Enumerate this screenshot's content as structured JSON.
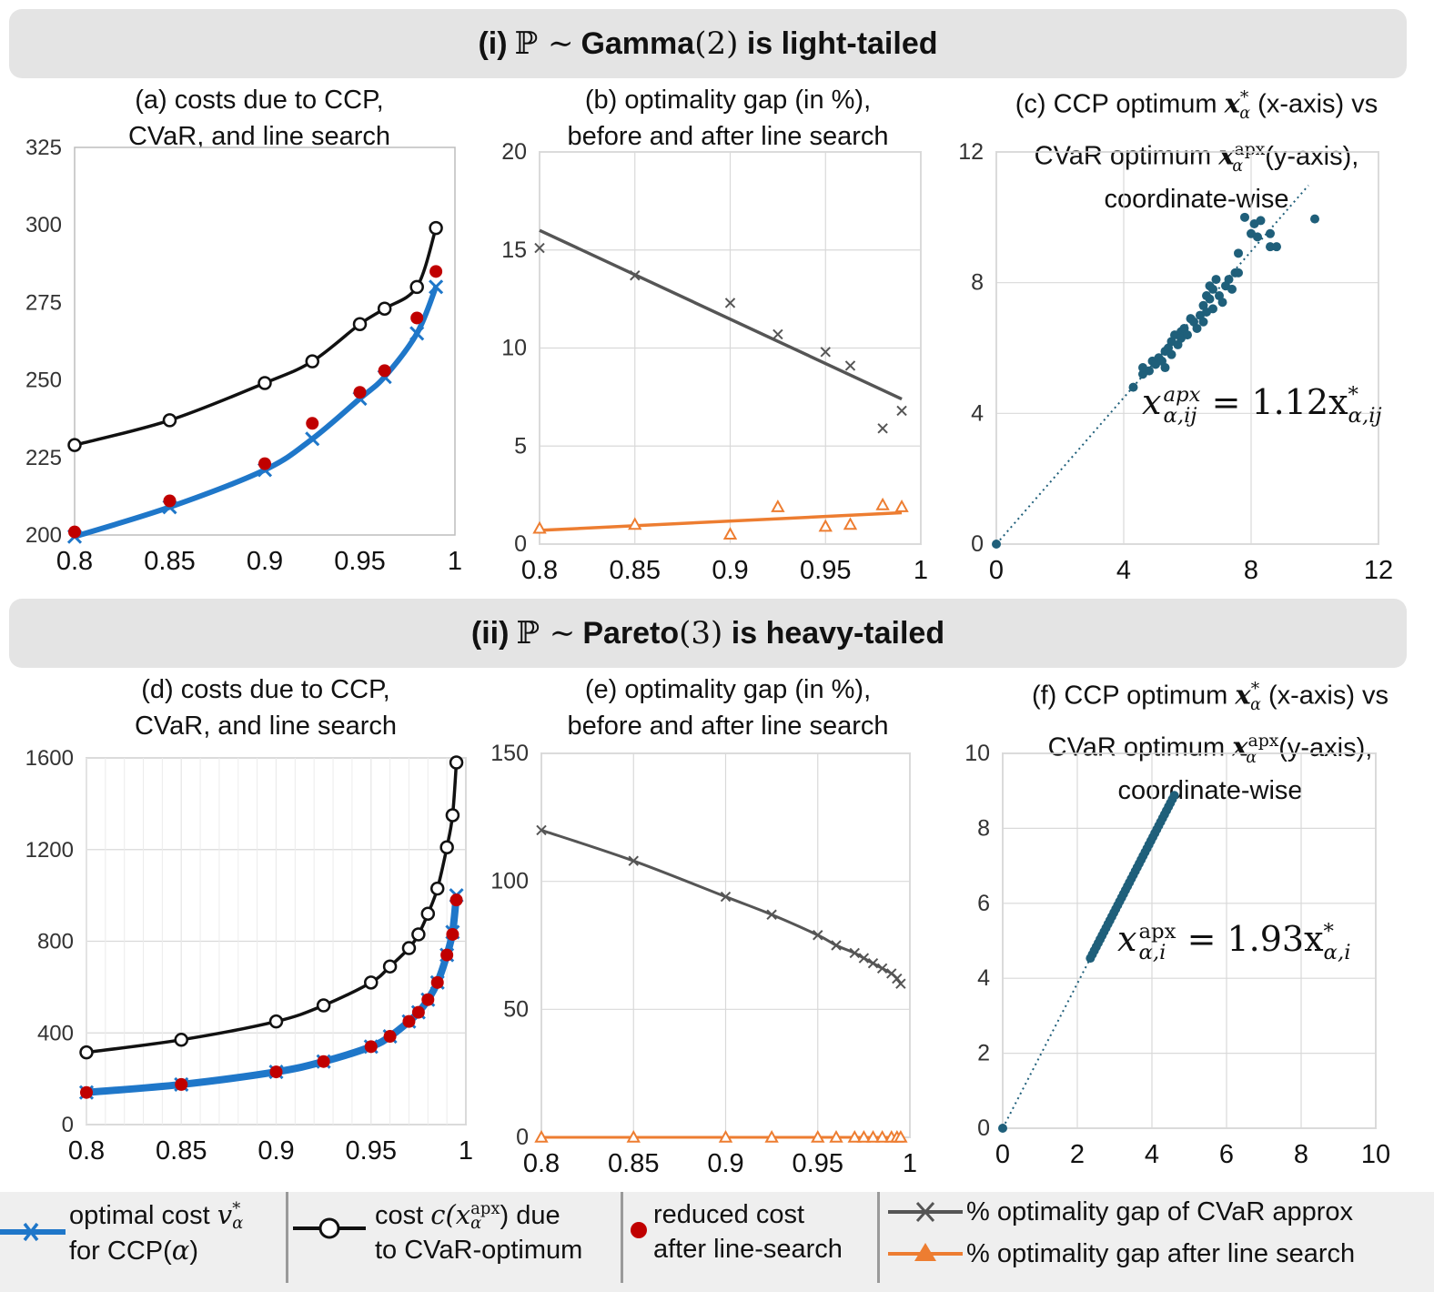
{
  "banners": {
    "top": {
      "prefix": "(i)",
      "symbol": "ℙ ∼",
      "dist": "Gamma",
      "param": "(2)",
      "suffix": "is light-tailed"
    },
    "bottom": {
      "prefix": "(ii)",
      "symbol": "ℙ ∼",
      "dist": "Pareto",
      "param": "(3)",
      "suffix": "is heavy-tailed"
    }
  },
  "titles": {
    "a": [
      "(a) costs due to CCP,",
      "CVaR, and line search"
    ],
    "b": [
      "(b) optimality gap (in %),",
      "before and after line search"
    ],
    "c": {
      "l1a": "(c) CCP optimum",
      "l1b": "(x-axis) vs",
      "l2a": "CVaR optimum",
      "l2b": "(y-axis),",
      "l3": "coordinate-wise"
    },
    "d": [
      "(d) costs due to CCP,",
      "CVaR, and line search"
    ],
    "e": [
      "(e) optimality gap (in %),",
      "before and after line search"
    ],
    "f": {
      "l1a": "(f) CCP optimum",
      "l1b": "(x-axis) vs",
      "l2a": "CVaR optimum",
      "l2b": "(y-axis),",
      "l3": "coordinate-wise"
    },
    "sym_x": "x",
    "sym_star": "*",
    "sym_alpha": "α",
    "sym_apx": "apx"
  },
  "equations": {
    "c": {
      "lhs": "x",
      "lhs_sup": "apx",
      "lhs_sub": "α,ij",
      "eq": "= 1.12x",
      "rhs_sup": "*",
      "rhs_sub": "α,ij"
    },
    "f": {
      "lhs": "x",
      "lhs_sup": "apx",
      "lhs_sub": "α,i",
      "eq": "= 1.93x",
      "rhs_sup": "*",
      "rhs_sub": "α,i"
    }
  },
  "legend": {
    "item1_l1": "optimal cost",
    "item1_sym": "v",
    "item1_sup": "*",
    "item1_sub": "α",
    "item1_l2a": "for  CCP(",
    "item1_l2b": "α",
    "item1_l2c": ")",
    "item2_l1a": "cost",
    "item2_sym": "c(x",
    "item2_sup": "apx",
    "item2_sub": "α",
    "item2_l1b": ") due",
    "item2_l2": "to CVaR-optimum",
    "item3_l1": "reduced cost",
    "item3_l2": "after line-search",
    "item4": "% optimality gap of CVaR approx",
    "item5": "% optimality gap after line search"
  },
  "colors": {
    "ccp": "#1f77c9",
    "cvar": "#111111",
    "reduced": "#c00000",
    "gap_before": "#555555",
    "gap_after": "#ed7d31",
    "scatter": "#1f5f7a"
  },
  "chart_data": [
    {
      "id": "a",
      "type": "line",
      "xlim": [
        0.8,
        1.0
      ],
      "ylim": [
        200,
        325
      ],
      "xticks": [
        0.8,
        0.85,
        0.9,
        0.95,
        1
      ],
      "xtick_labels": [
        "0.8",
        "0.85",
        "0.9",
        "0.95",
        "1"
      ],
      "yticks": [
        200,
        225,
        250,
        275,
        300,
        325
      ],
      "ytick_labels": [
        "200",
        "225",
        "250",
        "275",
        "300",
        "325"
      ],
      "grid": false,
      "series": [
        {
          "key": "cvar",
          "x": [
            0.8,
            0.85,
            0.9,
            0.925,
            0.95,
            0.963,
            0.98,
            0.99
          ],
          "y": [
            229,
            237,
            249,
            256,
            268,
            273,
            280,
            299
          ]
        },
        {
          "key": "ccp",
          "x": [
            0.8,
            0.85,
            0.9,
            0.925,
            0.95,
            0.963,
            0.98,
            0.99
          ],
          "y": [
            199.5,
            209,
            221,
            231,
            244,
            251,
            265,
            280
          ]
        },
        {
          "key": "reduced",
          "x": [
            0.8,
            0.85,
            0.9,
            0.925,
            0.95,
            0.963,
            0.98,
            0.99
          ],
          "y": [
            201,
            211,
            223,
            236,
            246,
            253,
            270,
            285
          ]
        }
      ]
    },
    {
      "id": "b",
      "type": "scatter",
      "xlim": [
        0.8,
        1.0
      ],
      "ylim": [
        0,
        20
      ],
      "xticks": [
        0.8,
        0.85,
        0.9,
        0.95,
        1
      ],
      "xtick_labels": [
        "0.8",
        "0.85",
        "0.9",
        "0.95",
        "1"
      ],
      "yticks": [
        0,
        5,
        10,
        15,
        20
      ],
      "ytick_labels": [
        "0",
        "5",
        "10",
        "15",
        "20"
      ],
      "grid": true,
      "series": [
        {
          "key": "gap_before",
          "x": [
            0.8,
            0.85,
            0.9,
            0.925,
            0.95,
            0.963,
            0.98,
            0.99
          ],
          "y": [
            15.1,
            13.7,
            12.3,
            10.7,
            9.8,
            9.1,
            5.9,
            6.8
          ],
          "trend": [
            [
              0.8,
              16.0
            ],
            [
              0.99,
              7.4
            ]
          ]
        },
        {
          "key": "gap_after",
          "x": [
            0.8,
            0.85,
            0.9,
            0.925,
            0.95,
            0.963,
            0.98,
            0.99
          ],
          "y": [
            0.8,
            1.0,
            0.5,
            1.9,
            0.9,
            1.0,
            2.0,
            1.9
          ],
          "trend": [
            [
              0.8,
              0.7
            ],
            [
              0.99,
              1.6
            ]
          ]
        }
      ]
    },
    {
      "id": "c",
      "type": "scatter",
      "xlim": [
        0,
        12
      ],
      "ylim": [
        0,
        12
      ],
      "xticks": [
        0,
        4,
        8,
        12
      ],
      "xtick_labels": [
        "0",
        "4",
        "8",
        "12"
      ],
      "yticks": [
        0,
        4,
        8,
        12
      ],
      "ytick_labels": [
        "0",
        "4",
        "8",
        "12"
      ],
      "grid": true,
      "fit_slope": 1.12,
      "fit_range": [
        0,
        9.8
      ],
      "points": [
        [
          0,
          0
        ],
        [
          4.3,
          4.8
        ],
        [
          4.6,
          5.2
        ],
        [
          4.6,
          5.4
        ],
        [
          4.8,
          5.3
        ],
        [
          4.9,
          5.6
        ],
        [
          5.0,
          5.5
        ],
        [
          5.1,
          5.7
        ],
        [
          5.2,
          5.6
        ],
        [
          5.3,
          5.9
        ],
        [
          5.3,
          5.4
        ],
        [
          5.4,
          6.0
        ],
        [
          5.5,
          6.2
        ],
        [
          5.5,
          5.8
        ],
        [
          5.6,
          6.4
        ],
        [
          5.7,
          6.1
        ],
        [
          5.8,
          6.5
        ],
        [
          5.8,
          6.3
        ],
        [
          5.9,
          6.6
        ],
        [
          6.0,
          6.4
        ],
        [
          6.1,
          6.9
        ],
        [
          6.2,
          6.8
        ],
        [
          6.3,
          6.6
        ],
        [
          6.4,
          7.0
        ],
        [
          6.5,
          6.8
        ],
        [
          6.5,
          7.3
        ],
        [
          6.6,
          7.1
        ],
        [
          6.6,
          7.6
        ],
        [
          6.7,
          7.5
        ],
        [
          6.7,
          7.9
        ],
        [
          6.8,
          7.2
        ],
        [
          6.8,
          7.8
        ],
        [
          6.9,
          8.1
        ],
        [
          7.0,
          7.6
        ],
        [
          7.1,
          7.4
        ],
        [
          7.2,
          7.9
        ],
        [
          7.3,
          8.1
        ],
        [
          7.4,
          7.8
        ],
        [
          7.5,
          8.3
        ],
        [
          7.6,
          8.3
        ],
        [
          7.6,
          8.9
        ],
        [
          7.8,
          10.0
        ],
        [
          8.0,
          9.5
        ],
        [
          8.1,
          9.8
        ],
        [
          8.2,
          9.4
        ],
        [
          8.3,
          9.9
        ],
        [
          8.6,
          9.1
        ],
        [
          8.6,
          9.5
        ],
        [
          8.8,
          9.1
        ],
        [
          10.0,
          9.95
        ]
      ]
    },
    {
      "id": "d",
      "type": "line",
      "xlim": [
        0.8,
        1.0
      ],
      "ylim": [
        0,
        1600
      ],
      "xticks": [
        0.8,
        0.85,
        0.9,
        0.95,
        1
      ],
      "xtick_labels": [
        "0.8",
        "0.85",
        "0.9",
        "0.95",
        "1"
      ],
      "yticks": [
        0,
        400,
        800,
        1200,
        1600
      ],
      "ytick_labels": [
        "0",
        "400",
        "800",
        "1200",
        "1600"
      ],
      "grid": true,
      "series": [
        {
          "key": "cvar",
          "x": [
            0.8,
            0.85,
            0.9,
            0.925,
            0.95,
            0.96,
            0.97,
            0.975,
            0.98,
            0.985,
            0.99,
            0.993,
            0.995
          ],
          "y": [
            315,
            370,
            450,
            520,
            620,
            690,
            770,
            830,
            920,
            1030,
            1210,
            1350,
            1580
          ]
        },
        {
          "key": "ccp",
          "x": [
            0.8,
            0.85,
            0.9,
            0.925,
            0.95,
            0.96,
            0.97,
            0.975,
            0.98,
            0.985,
            0.99,
            0.993,
            0.995
          ],
          "y": [
            140,
            175,
            230,
            275,
            340,
            385,
            450,
            490,
            545,
            620,
            740,
            840,
            1000
          ]
        },
        {
          "key": "reduced",
          "x": [
            0.8,
            0.85,
            0.9,
            0.925,
            0.95,
            0.96,
            0.97,
            0.975,
            0.98,
            0.985,
            0.99,
            0.993,
            0.995
          ],
          "y": [
            140,
            175,
            230,
            275,
            340,
            385,
            450,
            490,
            545,
            620,
            740,
            830,
            980
          ]
        }
      ]
    },
    {
      "id": "e",
      "type": "scatter",
      "xlim": [
        0.8,
        1.0
      ],
      "ylim": [
        0,
        150
      ],
      "xticks": [
        0.8,
        0.85,
        0.9,
        0.95,
        1
      ],
      "xtick_labels": [
        "0.8",
        "0.85",
        "0.9",
        "0.95",
        "1"
      ],
      "yticks": [
        0,
        50,
        100,
        150
      ],
      "ytick_labels": [
        "0",
        "50",
        "100",
        "150"
      ],
      "grid": true,
      "series": [
        {
          "key": "gap_before",
          "x": [
            0.8,
            0.85,
            0.9,
            0.925,
            0.95,
            0.96,
            0.97,
            0.975,
            0.98,
            0.985,
            0.99,
            0.993,
            0.995
          ],
          "y": [
            120,
            108,
            94,
            87,
            79,
            75,
            72,
            70,
            68,
            66,
            64,
            62,
            60
          ],
          "connect": true
        },
        {
          "key": "gap_after",
          "x": [
            0.8,
            0.85,
            0.9,
            0.925,
            0.95,
            0.96,
            0.97,
            0.975,
            0.98,
            0.985,
            0.99,
            0.993,
            0.995
          ],
          "y": [
            0,
            0,
            0,
            0,
            0,
            0,
            0,
            0,
            0,
            0,
            0,
            0,
            0
          ],
          "connect": true
        }
      ]
    },
    {
      "id": "f",
      "type": "scatter",
      "xlim": [
        0,
        10
      ],
      "ylim": [
        0,
        10
      ],
      "xticks": [
        0,
        2,
        4,
        6,
        8,
        10
      ],
      "xtick_labels": [
        "0",
        "2",
        "4",
        "6",
        "8",
        "10"
      ],
      "yticks": [
        0,
        2,
        4,
        6,
        8,
        10
      ],
      "ytick_labels": [
        "0",
        "2",
        "4",
        "6",
        "8",
        "10"
      ],
      "grid": true,
      "fit_slope": 1.93,
      "fit_range": [
        0,
        4.6
      ],
      "points_line": {
        "from": 2.35,
        "to": 4.6,
        "count": 44,
        "slope": 1.93
      },
      "points": [
        [
          0,
          0
        ]
      ]
    }
  ]
}
